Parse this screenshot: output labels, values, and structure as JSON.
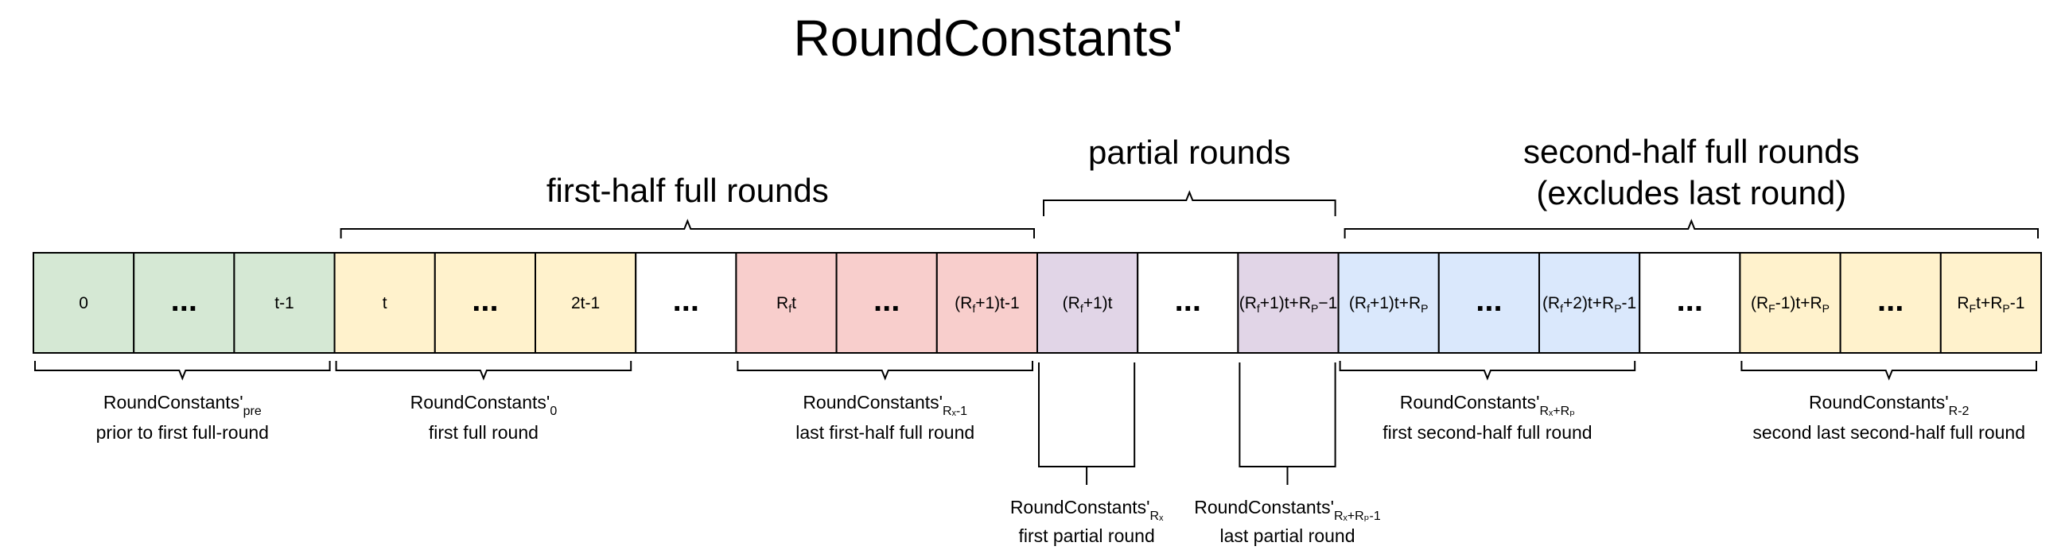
{
  "title": "RoundConstants'",
  "colors": {
    "green": "#d5e8d4",
    "yellow": "#fff2cc",
    "red": "#f8cecc",
    "purple": "#e1d5e7",
    "blue": "#dae8fc",
    "white": "#ffffff",
    "border": "#000000"
  },
  "cells": [
    {
      "text": "0",
      "color": "green"
    },
    {
      "text": "...",
      "color": "green",
      "dots": true
    },
    {
      "text": "t-1",
      "color": "green"
    },
    {
      "text": "t",
      "color": "yellow"
    },
    {
      "text": "...",
      "color": "yellow",
      "dots": true
    },
    {
      "text": "2t-1",
      "color": "yellow"
    },
    {
      "text": "...",
      "color": "white",
      "dots": true
    },
    {
      "text": "R",
      "sub": "f",
      "rest": "t",
      "color": "red"
    },
    {
      "text": "...",
      "color": "red",
      "dots": true
    },
    {
      "text": "(R",
      "sub": "f",
      "rest": "+1)t-1",
      "color": "red"
    },
    {
      "text": "(R",
      "sub": "f",
      "rest": "+1)t",
      "color": "purple"
    },
    {
      "text": "...",
      "color": "white",
      "dots": true
    },
    {
      "text": "(R",
      "sub": "f",
      "rest": "+1)t+R",
      "sub2": "P",
      "rest2": "−1",
      "color": "purple"
    },
    {
      "text": "(R",
      "sub": "f",
      "rest": "+1)t+R",
      "sub2": "P",
      "rest2": "",
      "color": "blue"
    },
    {
      "text": "...",
      "color": "blue",
      "dots": true
    },
    {
      "text": "(R",
      "sub": "f",
      "rest": "+2)t+R",
      "sub2": "P",
      "rest2": "-1",
      "color": "blue"
    },
    {
      "text": "...",
      "color": "white",
      "dots": true
    },
    {
      "text": "(R",
      "sub": "F",
      "rest": "-1)t+R",
      "sub2": "P",
      "rest2": "",
      "color": "yellow"
    },
    {
      "text": "...",
      "color": "yellow",
      "dots": true
    },
    {
      "text": "R",
      "sub": "F",
      "rest": "t+R",
      "sub2": "P",
      "rest2": "-1",
      "color": "yellow"
    }
  ],
  "top_groups": [
    {
      "name": "first-half-full-rounds",
      "lines": [
        "first-half full rounds"
      ],
      "from": 3,
      "to": 9
    },
    {
      "name": "partial-rounds",
      "lines": [
        "partial rounds"
      ],
      "from": 10,
      "to": 12
    },
    {
      "name": "second-half-full-rounds",
      "lines": [
        "second-half full rounds",
        "(excludes last round)"
      ],
      "from": 13,
      "to": 19
    }
  ],
  "bottom_groups": [
    {
      "name": "round-constants-pre",
      "main": "RoundConstants'",
      "sub": "pre",
      "desc": "prior to first full-round",
      "from": 0,
      "to": 2
    },
    {
      "name": "round-constants-0",
      "main": "RoundConstants'",
      "sub": "0",
      "desc": "first full round",
      "from": 3,
      "to": 5
    },
    {
      "name": "round-constants-rf-minus-1",
      "main": "RoundConstants'",
      "sub": "Rₓ-1",
      "desc": "last first-half full round",
      "from": 7,
      "to": 9
    },
    {
      "name": "round-constants-rf-plus-rp",
      "main": "RoundConstants'",
      "sub": "Rₓ+Rₚ",
      "desc": "first second-half full round",
      "from": 13,
      "to": 15
    },
    {
      "name": "round-constants-r-minus-2",
      "main": "RoundConstants'",
      "sub": "R-2",
      "desc": "second last second-half full round",
      "from": 17,
      "to": 19
    }
  ],
  "partial_groups": [
    {
      "name": "round-constants-rf",
      "main": "RoundConstants'",
      "sub": "Rₓ",
      "desc": "first partial round",
      "cell": 10
    },
    {
      "name": "round-constants-rf-rp-minus-1",
      "main": "RoundConstants'",
      "sub": "Rₓ+Rₚ-1",
      "desc": "last partial round",
      "cell": 12
    }
  ]
}
